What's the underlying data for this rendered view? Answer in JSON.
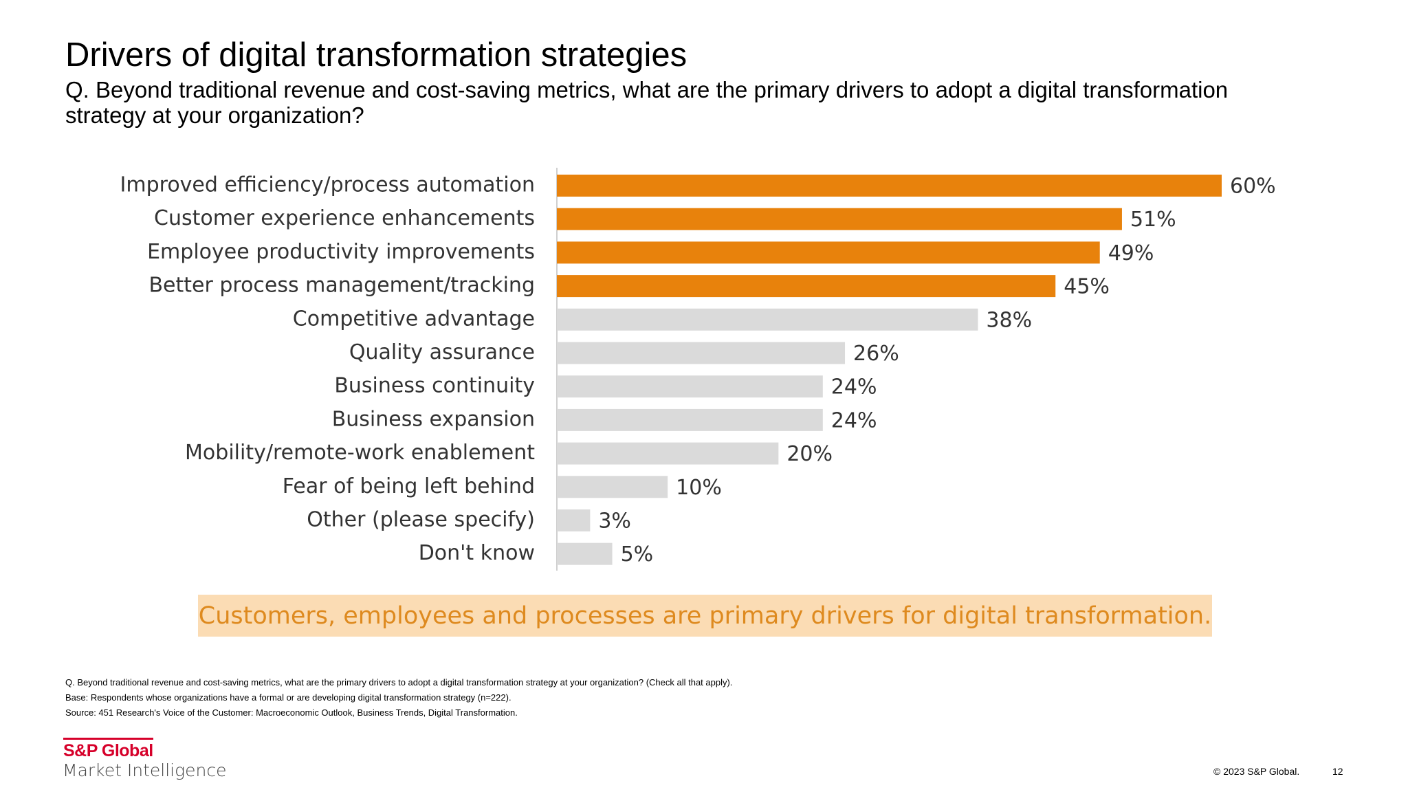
{
  "slide": {
    "title": "Drivers of digital transformation strategies",
    "subtitle": "Q. Beyond traditional revenue and cost-saving metrics, what are the primary drivers to adopt a digital transformation strategy at your organization?",
    "takeaway": "Customers, employees and processes are primary drivers for digital transformation.",
    "footnotes": [
      "Q. Beyond traditional revenue and cost-saving metrics, what are the primary drivers to adopt a digital transformation strategy at your organization?  (Check all that apply).",
      "Base: Respondents whose organizations have a formal or are developing digital transformation strategy (n=222).",
      "Source: 451 Research's Voice of the Customer: Macroeconomic Outlook, Business Trends, Digital Transformation."
    ],
    "logo_brand": "S&P Global",
    "logo_division": "Market Intelligence",
    "copyright": "© 2023 S&P Global.",
    "page_number": "12"
  },
  "colors": {
    "highlight": "#e8820c",
    "neutral": "#dadada",
    "takeaway_bg": "#fbdcb4",
    "takeaway_text": "#de8a1f",
    "brand_red": "#d6002a"
  },
  "chart_data": {
    "type": "bar",
    "orientation": "horizontal",
    "categories": [
      "Improved efficiency/process automation",
      "Customer experience enhancements",
      "Employee productivity improvements",
      "Better process management/tracking",
      "Competitive advantage",
      "Quality assurance",
      "Business continuity",
      "Business expansion",
      "Mobility/remote-work enablement",
      "Fear of being left behind",
      "Other (please specify)",
      "Don't know"
    ],
    "values": [
      60,
      51,
      49,
      45,
      38,
      26,
      24,
      24,
      20,
      10,
      3,
      5
    ],
    "value_labels": [
      "60%",
      "51%",
      "49%",
      "45%",
      "38%",
      "26%",
      "24%",
      "24%",
      "20%",
      "10%",
      "3%",
      "5%"
    ],
    "highlighted": [
      true,
      true,
      true,
      true,
      false,
      false,
      false,
      false,
      false,
      false,
      false,
      false
    ],
    "unit": "%",
    "xlim": [
      0,
      60
    ],
    "grid": false,
    "legend": false
  }
}
